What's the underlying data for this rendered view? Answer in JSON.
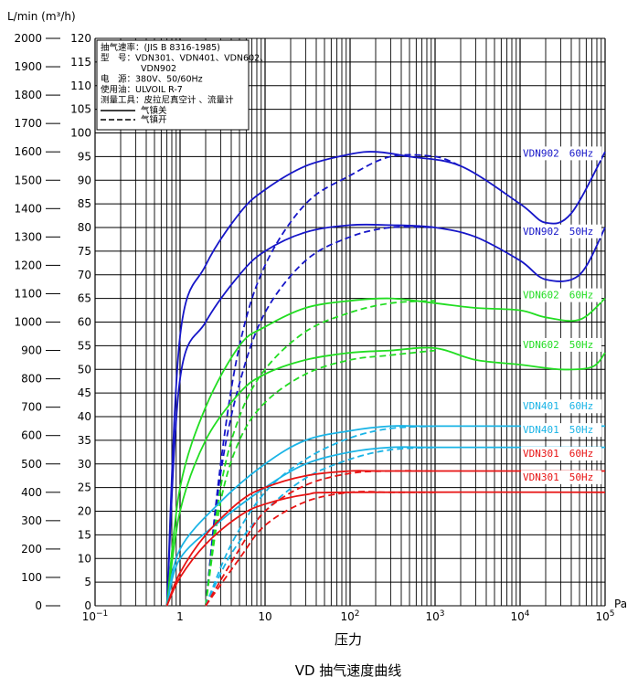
{
  "chart_data": {
    "type": "line",
    "title": "VD 抽气速度曲线",
    "xlabel": "压力",
    "x_unit": "Pa",
    "x_scale": "log",
    "xlim": [
      0.1,
      100000
    ],
    "x_ticks": [
      {
        "value": 0.1,
        "base": "10",
        "exp": "−1"
      },
      {
        "value": 1,
        "base": "1",
        "exp": ""
      },
      {
        "value": 10,
        "base": "10",
        "exp": ""
      },
      {
        "value": 100,
        "base": "10",
        "exp": "2"
      },
      {
        "value": 1000,
        "base": "10",
        "exp": "3"
      },
      {
        "value": 10000,
        "base": "10",
        "exp": "4"
      },
      {
        "value": 100000,
        "base": "10",
        "exp": "5"
      }
    ],
    "y_left": {
      "label": "L/min (m³/h)",
      "unit": "L/min",
      "ylim": [
        0,
        2000
      ],
      "ticks": [
        0,
        100,
        200,
        300,
        400,
        500,
        600,
        700,
        800,
        900,
        1000,
        1100,
        1200,
        1300,
        1400,
        1500,
        1600,
        1700,
        1800,
        1900,
        2000
      ]
    },
    "y_right": {
      "unit": "m³/h",
      "ylim": [
        0,
        120
      ],
      "ticks": [
        0,
        5,
        10,
        15,
        20,
        25,
        30,
        35,
        40,
        45,
        50,
        55,
        60,
        65,
        70,
        75,
        80,
        85,
        90,
        95,
        100,
        105,
        110,
        115,
        120
      ]
    },
    "grid": true,
    "legend": {
      "placement": "top-left",
      "lines": [
        "抽气速率：(JIS B 8316-1985)",
        "型　号：VDN301、VDN401、VDN602、",
        "VDN902",
        "电　源：380V、50/60Hz",
        "使用油：ULVOIL R-7",
        "测量工具：皮拉尼真空计 、流量计"
      ],
      "entries": [
        {
          "style": "solid",
          "label": "气镇关"
        },
        {
          "style": "dashed",
          "label": "气镇开"
        }
      ]
    },
    "series": [
      {
        "name": "VDN902 60Hz",
        "color": "#1616c8",
        "style": "solid",
        "points": [
          [
            0.7,
            0
          ],
          [
            1,
            57
          ],
          [
            2,
            72
          ],
          [
            5,
            83
          ],
          [
            10,
            88
          ],
          [
            30,
            93
          ],
          [
            100,
            95.5
          ],
          [
            200,
            96
          ],
          [
            500,
            95
          ],
          [
            2000,
            93
          ],
          [
            10000,
            85
          ],
          [
            20000,
            81
          ],
          [
            40000,
            83
          ],
          [
            100000,
            96
          ]
        ]
      },
      {
        "name": "VDN902 60Hz",
        "color": "#1616c8",
        "style": "dashed",
        "points": [
          [
            2,
            0
          ],
          [
            3,
            30
          ],
          [
            5,
            55
          ],
          [
            10,
            72
          ],
          [
            30,
            85
          ],
          [
            100,
            91
          ],
          [
            300,
            95
          ],
          [
            1000,
            95
          ],
          [
            2000,
            93
          ]
        ]
      },
      {
        "name": "VDN902 50Hz",
        "color": "#1616c8",
        "style": "solid",
        "points": [
          [
            0.7,
            0
          ],
          [
            1,
            48
          ],
          [
            2,
            60
          ],
          [
            5,
            70
          ],
          [
            10,
            75
          ],
          [
            30,
            79
          ],
          [
            100,
            80.5
          ],
          [
            300,
            80.5
          ],
          [
            1000,
            80
          ],
          [
            3000,
            78
          ],
          [
            10000,
            73
          ],
          [
            20000,
            69
          ],
          [
            50000,
            70
          ],
          [
            100000,
            80
          ]
        ]
      },
      {
        "name": "VDN902 50Hz",
        "color": "#1616c8",
        "style": "dashed",
        "points": [
          [
            2,
            0
          ],
          [
            3,
            28
          ],
          [
            5,
            47
          ],
          [
            10,
            62
          ],
          [
            30,
            73
          ],
          [
            100,
            78
          ],
          [
            300,
            80
          ],
          [
            1000,
            80
          ]
        ]
      },
      {
        "name": "VDN602 60Hz",
        "color": "#22dd22",
        "style": "solid",
        "points": [
          [
            0.7,
            0
          ],
          [
            1,
            25
          ],
          [
            2,
            42
          ],
          [
            5,
            55
          ],
          [
            10,
            59
          ],
          [
            30,
            63
          ],
          [
            100,
            64.5
          ],
          [
            300,
            65
          ],
          [
            1000,
            64
          ],
          [
            3000,
            63
          ],
          [
            10000,
            62.5
          ],
          [
            20000,
            61
          ],
          [
            50000,
            60.5
          ],
          [
            100000,
            65
          ]
        ]
      },
      {
        "name": "VDN602 60Hz",
        "color": "#22dd22",
        "style": "dashed",
        "points": [
          [
            2,
            0
          ],
          [
            3,
            25
          ],
          [
            5,
            40
          ],
          [
            10,
            50
          ],
          [
            30,
            58
          ],
          [
            100,
            62
          ],
          [
            300,
            64
          ],
          [
            1000,
            64.5
          ]
        ]
      },
      {
        "name": "VDN602 50Hz",
        "color": "#22dd22",
        "style": "solid",
        "points": [
          [
            0.7,
            0
          ],
          [
            1,
            20
          ],
          [
            2,
            35
          ],
          [
            5,
            45
          ],
          [
            10,
            49
          ],
          [
            30,
            52
          ],
          [
            100,
            53.5
          ],
          [
            300,
            54
          ],
          [
            1000,
            54.5
          ],
          [
            3000,
            52
          ],
          [
            10000,
            51
          ],
          [
            30000,
            50
          ],
          [
            70000,
            50.5
          ],
          [
            100000,
            53.5
          ]
        ]
      },
      {
        "name": "VDN602 50Hz",
        "color": "#22dd22",
        "style": "dashed",
        "points": [
          [
            2,
            0
          ],
          [
            3,
            22
          ],
          [
            5,
            35
          ],
          [
            10,
            43
          ],
          [
            30,
            49
          ],
          [
            100,
            52
          ],
          [
            300,
            53
          ],
          [
            1000,
            54
          ]
        ]
      },
      {
        "name": "VDN401 60Hz",
        "color": "#1ab4e6",
        "style": "solid",
        "points": [
          [
            0.7,
            0
          ],
          [
            1,
            12
          ],
          [
            3,
            22
          ],
          [
            10,
            30
          ],
          [
            30,
            35
          ],
          [
            100,
            37
          ],
          [
            300,
            38
          ],
          [
            1000,
            38
          ],
          [
            100000,
            38
          ]
        ]
      },
      {
        "name": "VDN401 60Hz",
        "color": "#1ab4e6",
        "style": "dashed",
        "points": [
          [
            2,
            0
          ],
          [
            4,
            13
          ],
          [
            10,
            24
          ],
          [
            30,
            31
          ],
          [
            100,
            35.5
          ],
          [
            300,
            37.5
          ],
          [
            1000,
            38
          ]
        ]
      },
      {
        "name": "VDN401 50Hz",
        "color": "#1ab4e6",
        "style": "solid",
        "points": [
          [
            0.7,
            0
          ],
          [
            1,
            10
          ],
          [
            3,
            18
          ],
          [
            10,
            25
          ],
          [
            30,
            30
          ],
          [
            100,
            32.5
          ],
          [
            300,
            33.5
          ],
          [
            1000,
            33.5
          ],
          [
            100000,
            33.5
          ]
        ]
      },
      {
        "name": "VDN401 50Hz",
        "color": "#1ab4e6",
        "style": "dashed",
        "points": [
          [
            2,
            0
          ],
          [
            4,
            11
          ],
          [
            10,
            20
          ],
          [
            30,
            27
          ],
          [
            100,
            31
          ],
          [
            300,
            33
          ],
          [
            1000,
            33.5
          ]
        ]
      },
      {
        "name": "VDN301 60Hz",
        "color": "#e81414",
        "style": "solid",
        "points": [
          [
            0.7,
            0
          ],
          [
            1,
            7
          ],
          [
            2,
            15
          ],
          [
            5,
            22
          ],
          [
            10,
            25
          ],
          [
            30,
            27.5
          ],
          [
            100,
            28.5
          ],
          [
            300,
            28.5
          ],
          [
            100000,
            28.5
          ]
        ]
      },
      {
        "name": "VDN301 60Hz",
        "color": "#e81414",
        "style": "dashed",
        "points": [
          [
            2,
            0
          ],
          [
            5,
            12
          ],
          [
            10,
            20
          ],
          [
            30,
            25.5
          ],
          [
            100,
            28
          ],
          [
            300,
            28.5
          ],
          [
            1000,
            28.5
          ]
        ]
      },
      {
        "name": "VDN301 50Hz",
        "color": "#e81414",
        "style": "solid",
        "points": [
          [
            0.7,
            0
          ],
          [
            1,
            6
          ],
          [
            2,
            13
          ],
          [
            5,
            19
          ],
          [
            10,
            21.5
          ],
          [
            30,
            23.5
          ],
          [
            100,
            24
          ],
          [
            100000,
            24
          ]
        ]
      },
      {
        "name": "VDN301 50Hz",
        "color": "#e81414",
        "style": "dashed",
        "points": [
          [
            2,
            0
          ],
          [
            5,
            10
          ],
          [
            10,
            17
          ],
          [
            30,
            22
          ],
          [
            100,
            24
          ],
          [
            300,
            24
          ],
          [
            1000,
            24
          ]
        ]
      }
    ],
    "series_labels": [
      {
        "text": "VDN902　60Hz",
        "color": "#1616c8",
        "y": 95
      },
      {
        "text": "VDN902　50Hz",
        "color": "#1616c8",
        "y": 78.5
      },
      {
        "text": "VDN602　60Hz",
        "color": "#22dd22",
        "y": 65
      },
      {
        "text": "VDN602　50Hz",
        "color": "#22dd22",
        "y": 54.5
      },
      {
        "text": "VDN401　60Hz",
        "color": "#1ab4e6",
        "y": 41.5
      },
      {
        "text": "VDN401　50Hz",
        "color": "#1ab4e6",
        "y": 36.5
      },
      {
        "text": "VDN301　60Hz",
        "color": "#e81414",
        "y": 31.5
      },
      {
        "text": "VDN301　50Hz",
        "color": "#e81414",
        "y": 26.5
      }
    ]
  }
}
